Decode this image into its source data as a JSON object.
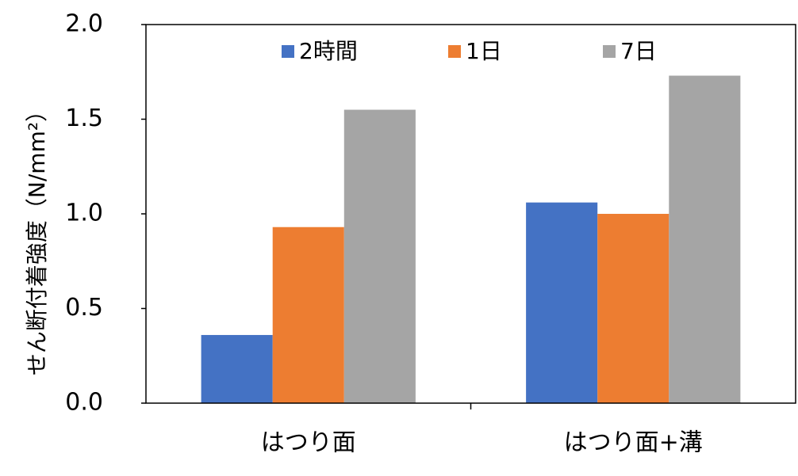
{
  "chart_data": {
    "type": "bar",
    "y_label": "せん断付着強度（N/mm²）",
    "categories": [
      "はつり面",
      "はつり面+溝"
    ],
    "series": [
      {
        "name": "2時間",
        "color": "#4472c4",
        "values": [
          0.36,
          1.06
        ]
      },
      {
        "name": "1日",
        "color": "#ed7d31",
        "values": [
          0.93,
          1.0
        ]
      },
      {
        "name": "7日",
        "color": "#a5a5a5",
        "values": [
          1.55,
          1.73
        ]
      }
    ],
    "ylim": [
      0,
      2.0
    ],
    "yticks": [
      {
        "value": 0,
        "label": "0.0"
      },
      0.5,
      {
        "value": 1,
        "label": "1.0"
      },
      1.5,
      {
        "value": 2,
        "label": "2.0"
      }
    ],
    "grid": false,
    "legend": "top"
  }
}
